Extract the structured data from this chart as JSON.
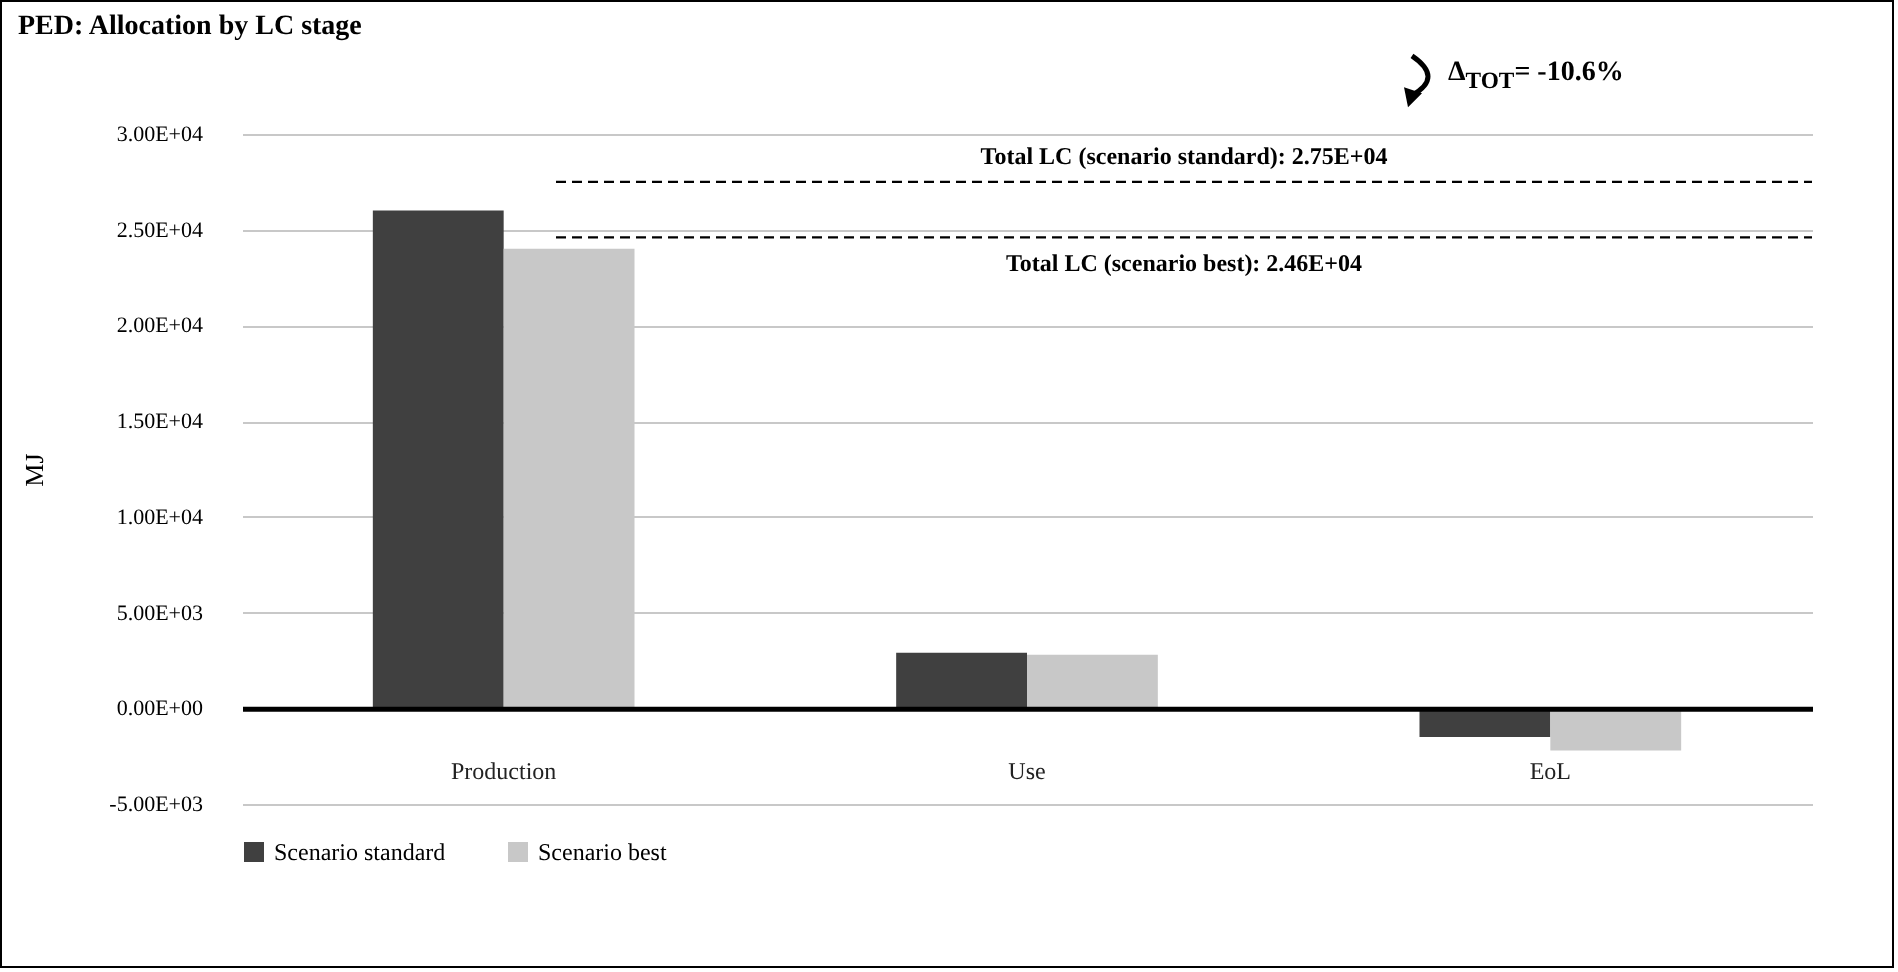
{
  "chart_data": {
    "type": "bar",
    "title": "PED: Allocation by LC stage",
    "ylabel": "MJ",
    "categories": [
      "Production",
      "Use",
      "EoL"
    ],
    "series": [
      {
        "name": "Scenario standard",
        "color": "#404040",
        "values": [
          26000,
          2900,
          -1500
        ]
      },
      {
        "name": "Scenario best",
        "color": "#c8c8c8",
        "values": [
          24000,
          2800,
          -2200
        ]
      }
    ],
    "ylim": [
      -5000,
      30000
    ],
    "yticks": [
      {
        "value": -5000,
        "label": "-5.00E+03"
      },
      {
        "value": 0,
        "label": "0.00E+00"
      },
      {
        "value": 5000,
        "label": "5.00E+03"
      },
      {
        "value": 10000,
        "label": "1.00E+04"
      },
      {
        "value": 15000,
        "label": "1.50E+04"
      },
      {
        "value": 20000,
        "label": "2.00E+04"
      },
      {
        "value": 25000,
        "label": "2.50E+04"
      },
      {
        "value": 30000,
        "label": "3.00E+04"
      }
    ],
    "ref_lines": [
      {
        "axis": "y",
        "value": 27500,
        "line_style": "dashed",
        "color": "#000000"
      },
      {
        "axis": "y",
        "value": 24600,
        "line_style": "dashed",
        "color": "#000000"
      }
    ],
    "annotations": [
      {
        "text": "Total LC (scenario standard): 2.75E+04",
        "y": 27500
      },
      {
        "text": "Total LC (scenario best): 2.46E+04",
        "y": 24600
      },
      "Δ$_{TOT}$= -10.6%"
    ],
    "grid": "y",
    "legend": "bottom left"
  }
}
